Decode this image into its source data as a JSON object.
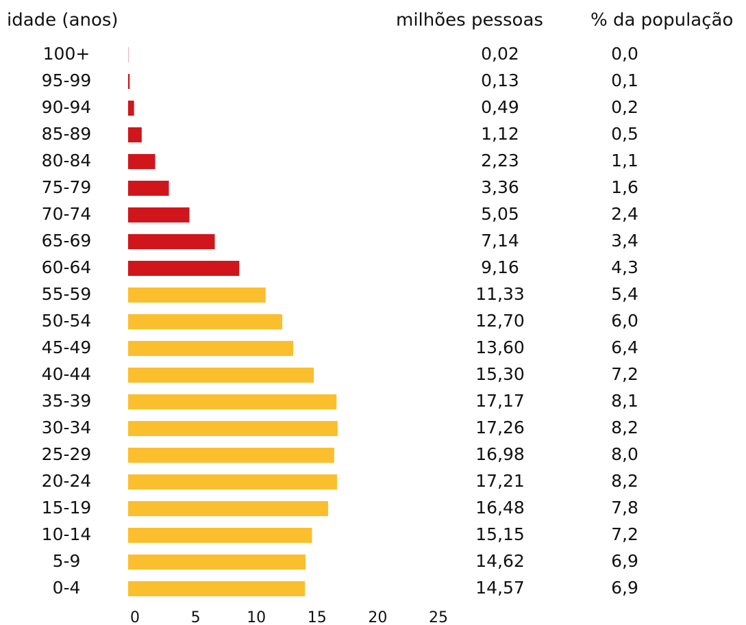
{
  "chart_data": {
    "type": "hbar",
    "category_header": "idade (anos)",
    "value_header": "milhões pessoas",
    "percent_header": "% da população",
    "categories": [
      "100+",
      "95-99",
      "90-94",
      "85-89",
      "80-84",
      "75-79",
      "70-74",
      "65-69",
      "60-64",
      "55-59",
      "50-54",
      "45-49",
      "40-44",
      "35-39",
      "30-34",
      "25-29",
      "20-24",
      "15-19",
      "10-14",
      "5-9",
      "0-4"
    ],
    "values": [
      0.02,
      0.13,
      0.49,
      1.12,
      2.23,
      3.36,
      5.05,
      7.14,
      9.16,
      11.33,
      12.7,
      13.6,
      15.3,
      17.17,
      17.26,
      16.98,
      17.21,
      16.48,
      15.15,
      14.62,
      14.57
    ],
    "value_labels": [
      "0,02",
      "0,13",
      "0,49",
      "1,12",
      "2,23",
      "3,36",
      "5,05",
      "7,14",
      "9,16",
      "11,33",
      "12,70",
      "13,60",
      "15,30",
      "17,17",
      "17,26",
      "16,98",
      "17,21",
      "16,48",
      "15,15",
      "14,62",
      "14,57"
    ],
    "percent_values": [
      0.0,
      0.1,
      0.2,
      0.5,
      1.1,
      1.6,
      2.4,
      3.4,
      4.3,
      5.4,
      6.0,
      6.4,
      7.2,
      8.1,
      8.2,
      8.0,
      8.2,
      7.8,
      7.2,
      6.9,
      6.9
    ],
    "percent_labels": [
      "0,0",
      "0,1",
      "0,2",
      "0,5",
      "1,1",
      "1,6",
      "2,4",
      "3,4",
      "4,3",
      "5,4",
      "6,0",
      "6,4",
      "7,2",
      "8,1",
      "8,2",
      "8,0",
      "8,2",
      "7,8",
      "7,2",
      "6,9",
      "6,9"
    ],
    "colors": [
      "#d0161b",
      "#d0161b",
      "#d0161b",
      "#d0161b",
      "#d0161b",
      "#d0161b",
      "#d0161b",
      "#d0161b",
      "#d0161b",
      "#fbbf2d",
      "#fbbf2d",
      "#fbbf2d",
      "#fbbf2d",
      "#fbbf2d",
      "#fbbf2d",
      "#fbbf2d",
      "#fbbf2d",
      "#fbbf2d",
      "#fbbf2d",
      "#fbbf2d",
      "#fbbf2d"
    ],
    "xlim": [
      0,
      25
    ],
    "xticks": [
      0,
      5,
      10,
      15,
      20,
      25
    ],
    "grid": false
  }
}
